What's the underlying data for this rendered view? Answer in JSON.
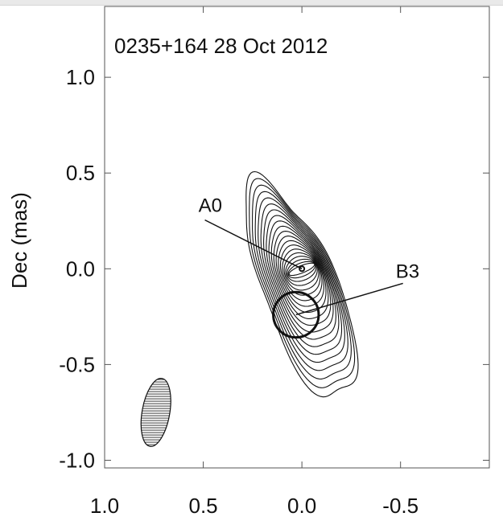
{
  "chart_data": {
    "type": "contour",
    "title": "0235+164 28 Oct 2012",
    "xlabel": "",
    "ylabel": "Dec (mas)",
    "xlim": [
      1.0,
      -0.95
    ],
    "ylim": [
      -1.04,
      1.37
    ],
    "x_ticks": [
      {
        "value": 1.0,
        "label": "1.0"
      },
      {
        "value": 0.5,
        "label": "0.5"
      },
      {
        "value": 0.0,
        "label": "0.0"
      },
      {
        "value": -0.5,
        "label": "-0.5"
      }
    ],
    "y_ticks": [
      {
        "value": 1.0,
        "label": "1.0"
      },
      {
        "value": 0.5,
        "label": "0.5"
      },
      {
        "value": 0.0,
        "label": "0.0"
      },
      {
        "value": -0.5,
        "label": "-0.5"
      },
      {
        "value": -1.0,
        "label": "-1.0"
      }
    ],
    "grid": false,
    "contour_levels": 20,
    "source_model": {
      "outer_extent_ra": [
        0.38,
        -0.34
      ],
      "outer_extent_dec": [
        -0.72,
        0.56
      ],
      "peak": {
        "ra": 0.0,
        "dec": 0.0
      }
    },
    "components": [
      {
        "name": "A0",
        "ra": 0.0,
        "dec": 0.0,
        "size_mas": 0.015,
        "label_ra": 0.5,
        "label_dec": 0.28
      },
      {
        "name": "B3",
        "ra": 0.03,
        "dec": -0.24,
        "size_mas": 0.23,
        "label_ra": -0.5,
        "label_dec": -0.03
      }
    ],
    "beam": {
      "ra": 0.74,
      "dec": -0.75,
      "major_mas": 0.36,
      "minor_mas": 0.14,
      "pa_deg": 10
    }
  }
}
